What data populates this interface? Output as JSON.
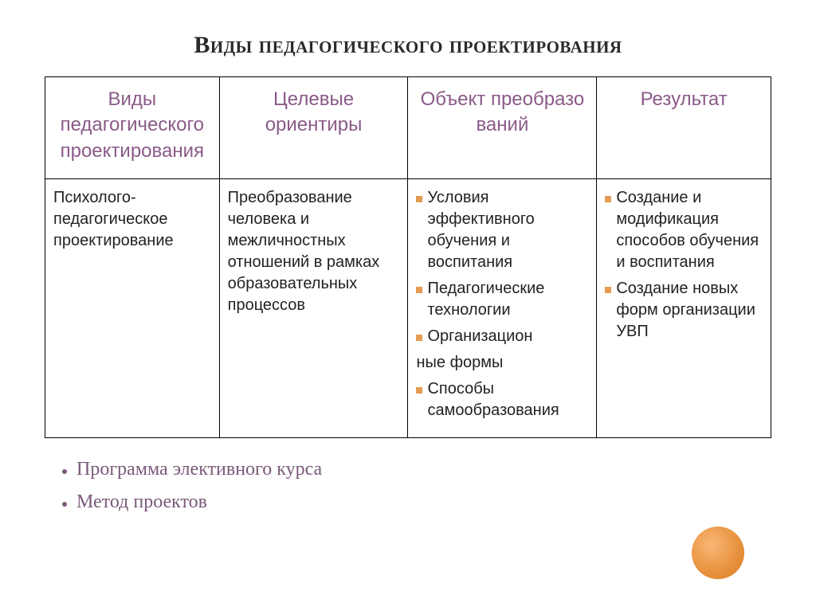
{
  "title": "Виды педагогического проектирования",
  "table": {
    "headers": {
      "c1": "Виды педагогического проектирования",
      "c2": "Целевые ориентиры",
      "c3": "Объект преобразо ваний",
      "c4": "Результат"
    },
    "row": {
      "c1": "Психолого-педагогическое проектирование",
      "c2": "Преобразование человека и межличностных отношений в рамках образовательных процессов",
      "c3": {
        "i1": "Условия эффективного обучения и воспитания",
        "i2": "Педагогические технологии",
        "i3a": "Организацион",
        "i3b": "ные формы",
        "i4": "Способы самообразования"
      },
      "c4": {
        "i1": "Создание и модификация способов обучения и воспитания",
        "i2": "Создание новых форм организации УВП"
      }
    }
  },
  "footer": {
    "i1": "Программа элективного курса",
    "i2": "Метод проектов"
  },
  "style": {
    "bullet_color": "#e49b52",
    "header_text_color": "#8a5a88",
    "footer_text_color": "#7a5a7a",
    "circle_gradient": "radial-gradient(circle at 38% 35%, #f8b877 0%, #e99340 55%, #d97b20 100%)",
    "title_fontsize": 30,
    "header_fontsize": 24,
    "body_fontsize": 20,
    "footer_fontsize": 24,
    "border_color": "#000000",
    "background_color": "#ffffff"
  }
}
